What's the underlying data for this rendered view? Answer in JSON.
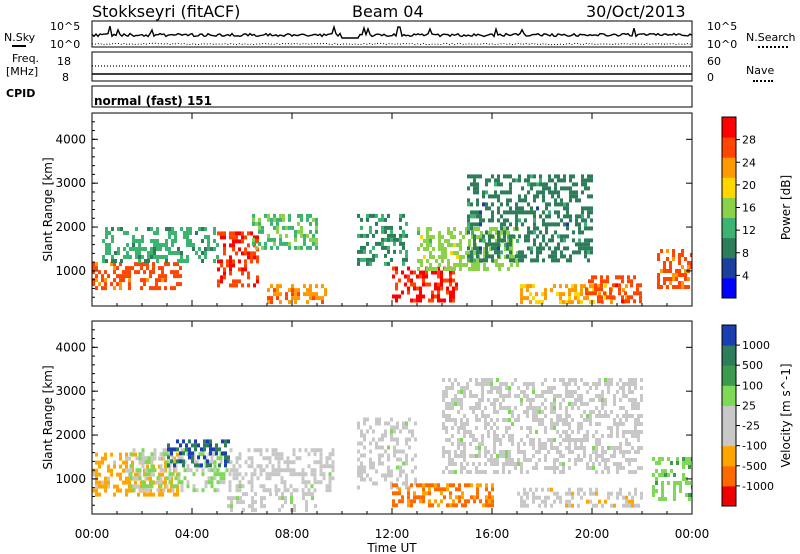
{
  "header": {
    "station": "Stokkseyri (fitACF)",
    "beam": "Beam 04",
    "date": "30/Oct/2013"
  },
  "noise_panel": {
    "left_label": "N.Sky",
    "left_ticks": [
      "10^5",
      "10^0"
    ],
    "right_label": "N.Search",
    "right_ticks": [
      "10^5",
      "10^0"
    ]
  },
  "freq_panel": {
    "left_label_line1": "Freq.",
    "left_label_line2": "[MHz]",
    "left_ticks": [
      "18",
      "8"
    ],
    "right_label": "Nave",
    "right_ticks": [
      "60",
      "0"
    ]
  },
  "cpid_panel": {
    "label": "CPID",
    "mode": "normal (fast) 151"
  },
  "colors": {
    "power_scale": [
      "#0000ff",
      "#1c3f9e",
      "#2e7d5a",
      "#3cb371",
      "#8bd14a",
      "#ffd700",
      "#ff9900",
      "#ff4500",
      "#ff0000"
    ],
    "velocity_scale": [
      "#ee0000",
      "#ff6a00",
      "#ffa500",
      "#c8c8c8",
      "#c8c8c8",
      "#7ed957",
      "#3c9a4f",
      "#2e7d5a",
      "#1a3fb0"
    ]
  },
  "chart_data": [
    {
      "type": "heatmap",
      "title": "",
      "xlabel": "Time UT",
      "ylabel": "Slant Range [km]",
      "x_ticks": [
        "00:00",
        "04:00",
        "08:00",
        "12:00",
        "16:00",
        "20:00",
        "00:00"
      ],
      "xlim": [
        0,
        24
      ],
      "y_ticks": [
        "1000",
        "2000",
        "3000",
        "4000"
      ],
      "ylim": [
        200,
        4600
      ],
      "colorbar_label": "Power [dB]",
      "colorbar_ticks": [
        "4",
        "8",
        "12",
        "16",
        "20",
        "24",
        "28"
      ],
      "colorbar_range": [
        0,
        32
      ],
      "scatter_regions": [
        {
          "t0": 0.0,
          "t1": 3.6,
          "r0": 600,
          "r1": 1200,
          "value": 26
        },
        {
          "t0": 0.4,
          "t1": 5.0,
          "r0": 1200,
          "r1": 2000,
          "value": 12
        },
        {
          "t0": 5.0,
          "t1": 6.6,
          "r0": 700,
          "r1": 1900,
          "value": 28
        },
        {
          "t0": 6.4,
          "t1": 9.0,
          "r0": 1500,
          "r1": 2300,
          "value": 14
        },
        {
          "t0": 7.0,
          "t1": 9.4,
          "r0": 300,
          "r1": 700,
          "value": 24
        },
        {
          "t0": 10.6,
          "t1": 12.6,
          "r0": 1200,
          "r1": 2300,
          "value": 10
        },
        {
          "t0": 12.0,
          "t1": 14.6,
          "r0": 300,
          "r1": 1100,
          "value": 29
        },
        {
          "t0": 13.0,
          "t1": 17.0,
          "r0": 1000,
          "r1": 2000,
          "value": 16
        },
        {
          "t0": 15.0,
          "t1": 20.0,
          "r0": 1200,
          "r1": 3200,
          "value": 9
        },
        {
          "t0": 17.0,
          "t1": 21.4,
          "r0": 300,
          "r1": 700,
          "value": 22
        },
        {
          "t0": 19.6,
          "t1": 22.0,
          "r0": 300,
          "r1": 900,
          "value": 27
        },
        {
          "t0": 22.6,
          "t1": 24.0,
          "r0": 600,
          "r1": 1500,
          "value": 26
        }
      ]
    },
    {
      "type": "heatmap",
      "title": "",
      "xlabel": "Time UT",
      "ylabel": "Slant Range [km]",
      "x_ticks": [
        "00:00",
        "04:00",
        "08:00",
        "12:00",
        "16:00",
        "20:00",
        "00:00"
      ],
      "xlim": [
        0,
        24
      ],
      "y_ticks": [
        "1000",
        "2000",
        "3000",
        "4000"
      ],
      "ylim": [
        200,
        4600
      ],
      "colorbar_label": "Velocity [m s^-1]",
      "colorbar_ticks": [
        "-1000",
        "-500",
        "-100",
        "-25",
        "25",
        "100",
        "500",
        "1000"
      ],
      "colorbar_range": [
        -1200,
        1200
      ],
      "scatter_regions": [
        {
          "t0": 0.0,
          "t1": 3.4,
          "r0": 600,
          "r1": 1600,
          "value": -500
        },
        {
          "t0": 1.5,
          "t1": 5.5,
          "r0": 700,
          "r1": 1700,
          "value": 150
        },
        {
          "t0": 3.0,
          "t1": 5.5,
          "r0": 1300,
          "r1": 1900,
          "value": 900
        },
        {
          "t0": 5.5,
          "t1": 9.6,
          "r0": 700,
          "r1": 1700,
          "value": 0
        },
        {
          "t0": 5.4,
          "t1": 9.0,
          "r0": 300,
          "r1": 700,
          "value": 60
        },
        {
          "t0": 10.6,
          "t1": 13.0,
          "r0": 800,
          "r1": 2400,
          "value": 0
        },
        {
          "t0": 12.0,
          "t1": 16.0,
          "r0": 400,
          "r1": 900,
          "value": -700
        },
        {
          "t0": 14.0,
          "t1": 22.0,
          "r0": 1200,
          "r1": 3300,
          "value": 0
        },
        {
          "t0": 17.0,
          "t1": 22.0,
          "r0": 400,
          "r1": 800,
          "value": -300
        },
        {
          "t0": 22.4,
          "t1": 24.0,
          "r0": 500,
          "r1": 1500,
          "value": 300
        }
      ]
    }
  ]
}
